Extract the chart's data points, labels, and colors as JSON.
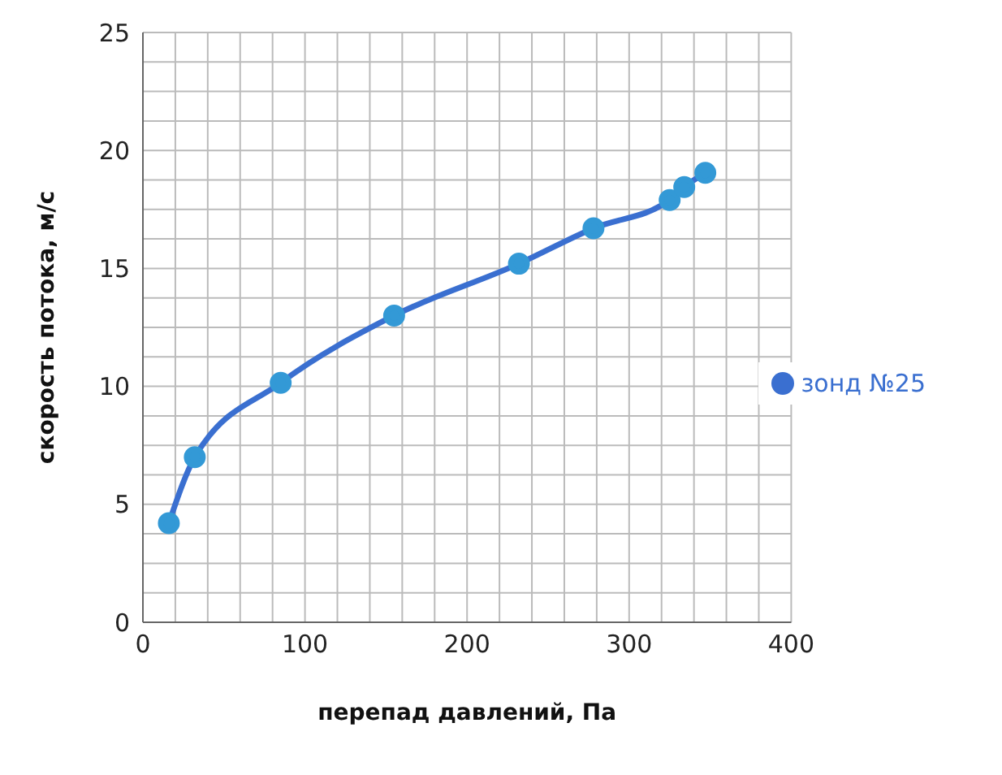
{
  "chart_data": {
    "type": "line",
    "xlabel": "перепад давлений, Па",
    "ylabel": "скорость потока, м/с",
    "xlim": [
      0,
      400
    ],
    "ylim": [
      0,
      25
    ],
    "xticks": [
      0,
      {
        "value": 20,
        "label": null
      },
      {
        "value": 40,
        "label": null
      },
      {
        "value": 60,
        "label": null
      },
      {
        "value": 80,
        "label": null
      },
      100,
      {
        "value": 120,
        "label": null
      },
      {
        "value": 140,
        "label": null
      },
      {
        "value": 160,
        "label": null
      },
      {
        "value": 180,
        "label": null
      },
      200,
      {
        "value": 220,
        "label": null
      },
      {
        "value": 240,
        "label": null
      },
      {
        "value": 260,
        "label": null
      },
      {
        "value": 280,
        "label": null
      },
      300,
      {
        "value": 320,
        "label": null
      },
      {
        "value": 340,
        "label": null
      },
      {
        "value": 360,
        "label": null
      },
      {
        "value": 380,
        "label": null
      },
      400
    ],
    "yticks": [
      0,
      {
        "value": 1.25,
        "label": null
      },
      {
        "value": 2.5,
        "label": null
      },
      {
        "value": 3.75,
        "label": null
      },
      5,
      {
        "value": 6.25,
        "label": null
      },
      {
        "value": 7.5,
        "label": null
      },
      {
        "value": 8.75,
        "label": null
      },
      10,
      {
        "value": 11.25,
        "label": null
      },
      {
        "value": 12.5,
        "label": null
      },
      {
        "value": 13.75,
        "label": null
      },
      15,
      {
        "value": 16.25,
        "label": null
      },
      {
        "value": 17.5,
        "label": null
      },
      {
        "value": 18.75,
        "label": null
      },
      20,
      {
        "value": 21.25,
        "label": null
      },
      {
        "value": 22.5,
        "label": null
      },
      {
        "value": 23.75,
        "label": null
      },
      25
    ],
    "grid": true,
    "legend": "right",
    "marker": "circle",
    "line_style": "solid",
    "series": [
      {
        "name": "зонд №25",
        "color": "#3a6fd0",
        "x": [
          16,
          32,
          85,
          155,
          232,
          278,
          325,
          334,
          347
        ],
        "values": [
          4.2,
          7,
          10.15,
          13,
          15.2,
          16.7,
          17.9,
          18.45,
          19.05
        ]
      }
    ]
  }
}
